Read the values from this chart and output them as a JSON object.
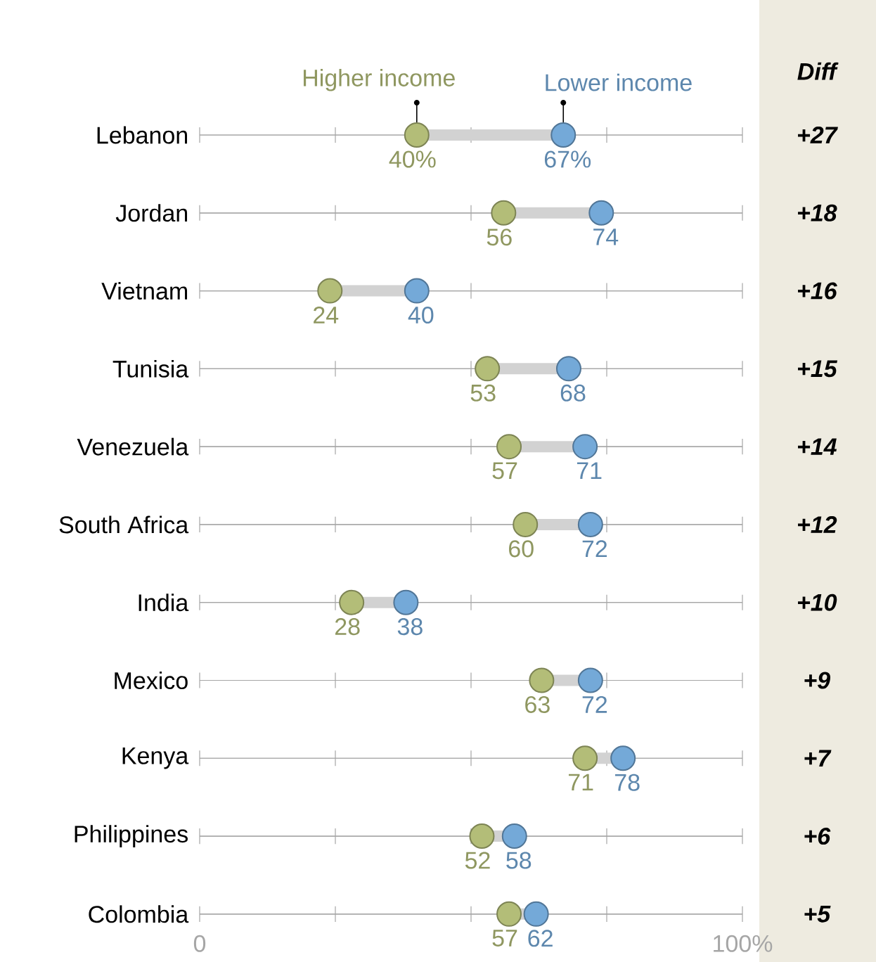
{
  "chart_data": {
    "type": "scatter",
    "orientation": "horizontal",
    "grid": "y",
    "legend": "top",
    "categories": [
      "Lebanon",
      "Jordan",
      "Vietnam",
      "Tunisia",
      "Venezuela",
      "South Africa",
      "India",
      "Mexico",
      "Kenya",
      "Philippines",
      "Colombia"
    ],
    "series": [
      {
        "name": "Higher income",
        "color": "#b3bd78",
        "values": [
          40,
          56,
          24,
          53,
          57,
          60,
          28,
          63,
          71,
          52,
          57
        ],
        "value_labels": [
          "40%",
          "56",
          "24",
          "53",
          "57",
          "60",
          "28",
          "63",
          "71",
          "52",
          "57"
        ]
      },
      {
        "name": "Lower income",
        "color": "#74a9d8",
        "values": [
          67,
          74,
          40,
          68,
          71,
          72,
          38,
          72,
          78,
          58,
          62
        ],
        "value_labels": [
          "67%",
          "74",
          "40",
          "68",
          "71",
          "72",
          "38",
          "72",
          "78",
          "58",
          "62"
        ]
      }
    ],
    "xlim": [
      0,
      100
    ],
    "xticks": [
      {
        "value": 0,
        "label": "0"
      },
      {
        "value": 25,
        "label": null
      },
      {
        "value": 50,
        "label": null
      },
      {
        "value": 75,
        "label": null
      },
      {
        "value": 100,
        "label": "100%"
      }
    ],
    "annotations": [
      "Diff",
      "+27",
      "+18",
      "+16",
      "+15",
      "+14",
      "+12",
      "+10",
      "+9",
      "+7",
      "+6",
      "+5"
    ]
  }
}
